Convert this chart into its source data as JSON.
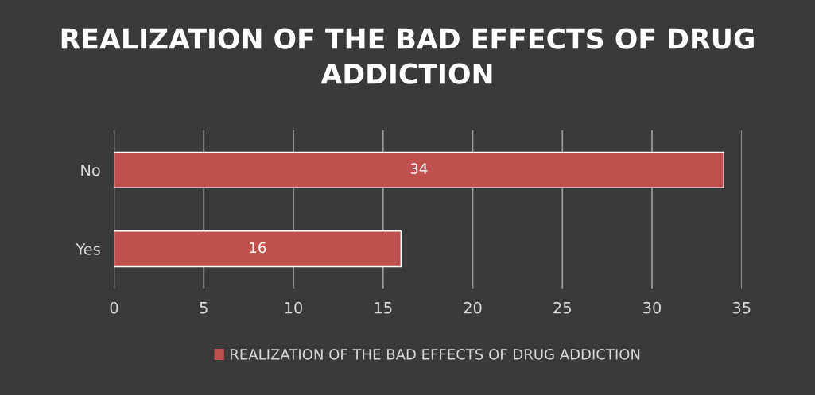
{
  "chart_data": {
    "type": "bar",
    "orientation": "horizontal",
    "title": "REALIZATION OF THE BAD EFFECTS OF DRUG ADDICTION",
    "categories": [
      "No",
      "Yes"
    ],
    "series": [
      {
        "name": "REALIZATION OF THE BAD EFFECTS OF DRUG ADDICTION",
        "color": "#c0504d",
        "values": [
          34,
          16
        ]
      }
    ],
    "xlim": [
      0,
      35
    ],
    "xticks": [
      0,
      5,
      10,
      15,
      20,
      25,
      30,
      35
    ],
    "grid": "x",
    "legend": "bottom",
    "data_labels": true
  }
}
